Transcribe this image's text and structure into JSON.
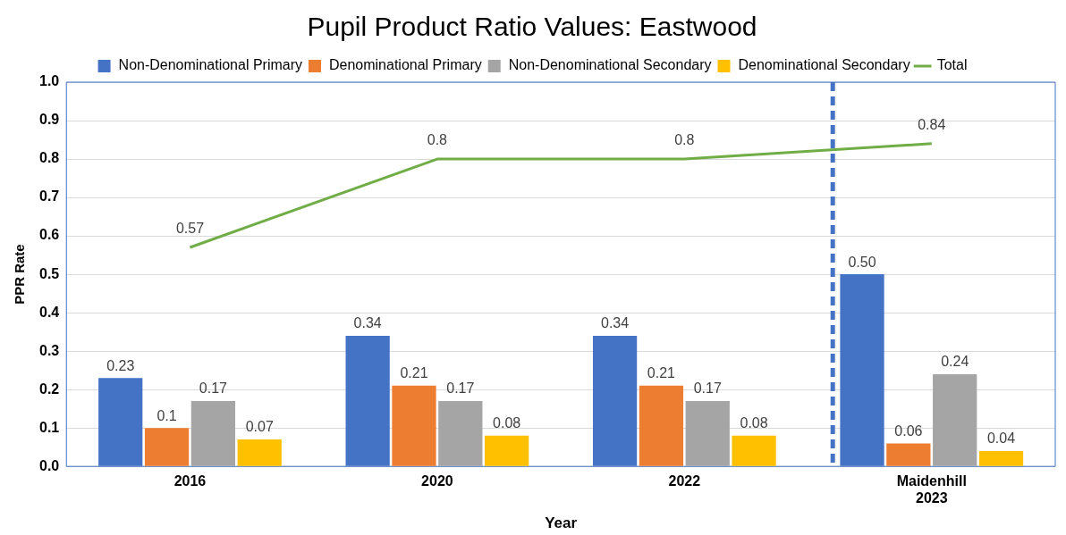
{
  "chart_data": {
    "type": "bar",
    "title": "Pupil Product Ratio Values: Eastwood",
    "xlabel": "Year",
    "ylabel": "PPR Rate",
    "categories": [
      "2016",
      "2020",
      "2022",
      "Maidenhill\n2023"
    ],
    "series": [
      {
        "name": "Non-Denominational Primary",
        "color": "#4472c4",
        "values": [
          0.23,
          0.34,
          0.34,
          0.5
        ],
        "value_labels": [
          "0.23",
          "0.34",
          "0.34",
          "0.50"
        ]
      },
      {
        "name": "Denominational Primary",
        "color": "#ed7d31",
        "values": [
          0.1,
          0.21,
          0.21,
          0.06
        ],
        "value_labels": [
          "0.1",
          "0.21",
          "0.21",
          "0.06"
        ]
      },
      {
        "name": "Non-Denominational Secondary",
        "color": "#a5a5a5",
        "values": [
          0.17,
          0.17,
          0.17,
          0.24
        ],
        "value_labels": [
          "0.17",
          "0.17",
          "0.17",
          "0.24"
        ]
      },
      {
        "name": "Denominational Secondary",
        "color": "#ffc000",
        "values": [
          0.07,
          0.08,
          0.08,
          0.04
        ],
        "value_labels": [
          "0.07",
          "0.08",
          "0.08",
          "0.04"
        ]
      },
      {
        "name": "Total",
        "type": "line",
        "color": "#70ad47",
        "values": [
          0.57,
          0.8,
          0.8,
          0.84
        ],
        "value_labels": [
          "0.57",
          "0.8",
          "0.8",
          "0.84"
        ]
      }
    ],
    "ylim": [
      0,
      1
    ],
    "yticks": [
      {
        "value": 0,
        "label": "0.0"
      },
      {
        "value": 0.1,
        "label": "0.1"
      },
      {
        "value": 0.2,
        "label": "0.2"
      },
      {
        "value": 0.3,
        "label": "0.3"
      },
      {
        "value": 0.4,
        "label": "0.4"
      },
      {
        "value": 0.5,
        "label": "0.5"
      },
      {
        "value": 0.6,
        "label": "0.6"
      },
      {
        "value": 0.7,
        "label": "0.7"
      },
      {
        "value": 0.8,
        "label": "0.8"
      },
      {
        "value": 0.9,
        "label": "0.9"
      },
      {
        "value": 1,
        "label": "1.0"
      }
    ],
    "ref_lines": [
      {
        "axis": "x",
        "value": "Maidenhill\n2023",
        "color": "#4472c4",
        "line_style": "dashed"
      }
    ],
    "grid": "y",
    "legend": "top",
    "marker": "none"
  }
}
